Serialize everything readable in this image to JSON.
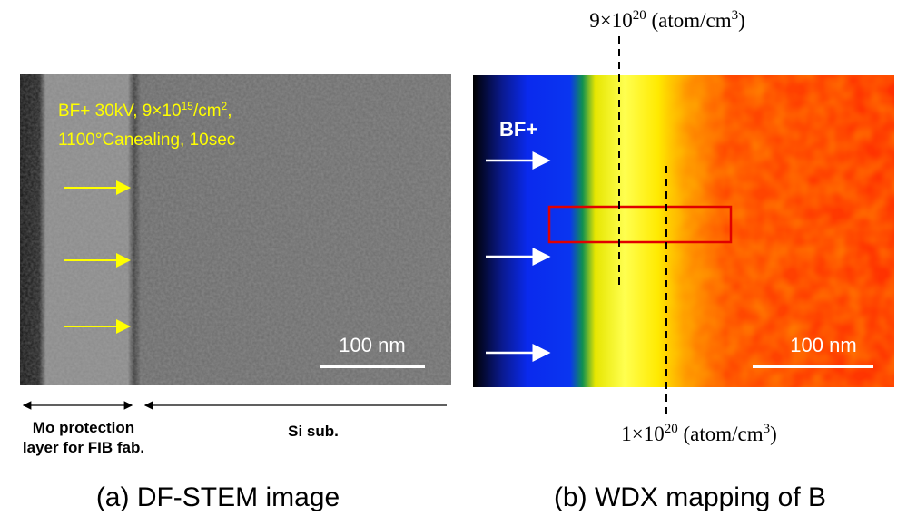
{
  "panel_a": {
    "annotation": {
      "line1": {
        "text": "BF+ 30kV, 9×10",
        "sup": "15",
        "unit": "/cm",
        "unit_sup": "2",
        "tail": ","
      },
      "line2": "1100°Canealing, 10sec"
    },
    "scale_bar": "100 nm",
    "mo_label": [
      "Mo protection",
      "layer for FIB fab."
    ],
    "si_label": "Si sub.",
    "caption": "(a) DF-STEM image"
  },
  "panel_b": {
    "ion_label": "BF+",
    "scale_bar": "100 nm",
    "top_label": {
      "text": "9×10",
      "sup": "20",
      "unit": " (atom/cm",
      "unit_sup": "3",
      "close": ")"
    },
    "bottom_label": {
      "text": "1×10",
      "sup": "20",
      "unit": " (atom/cm",
      "unit_sup": "3",
      "close": ")"
    },
    "caption": "(b) WDX mapping of B"
  }
}
